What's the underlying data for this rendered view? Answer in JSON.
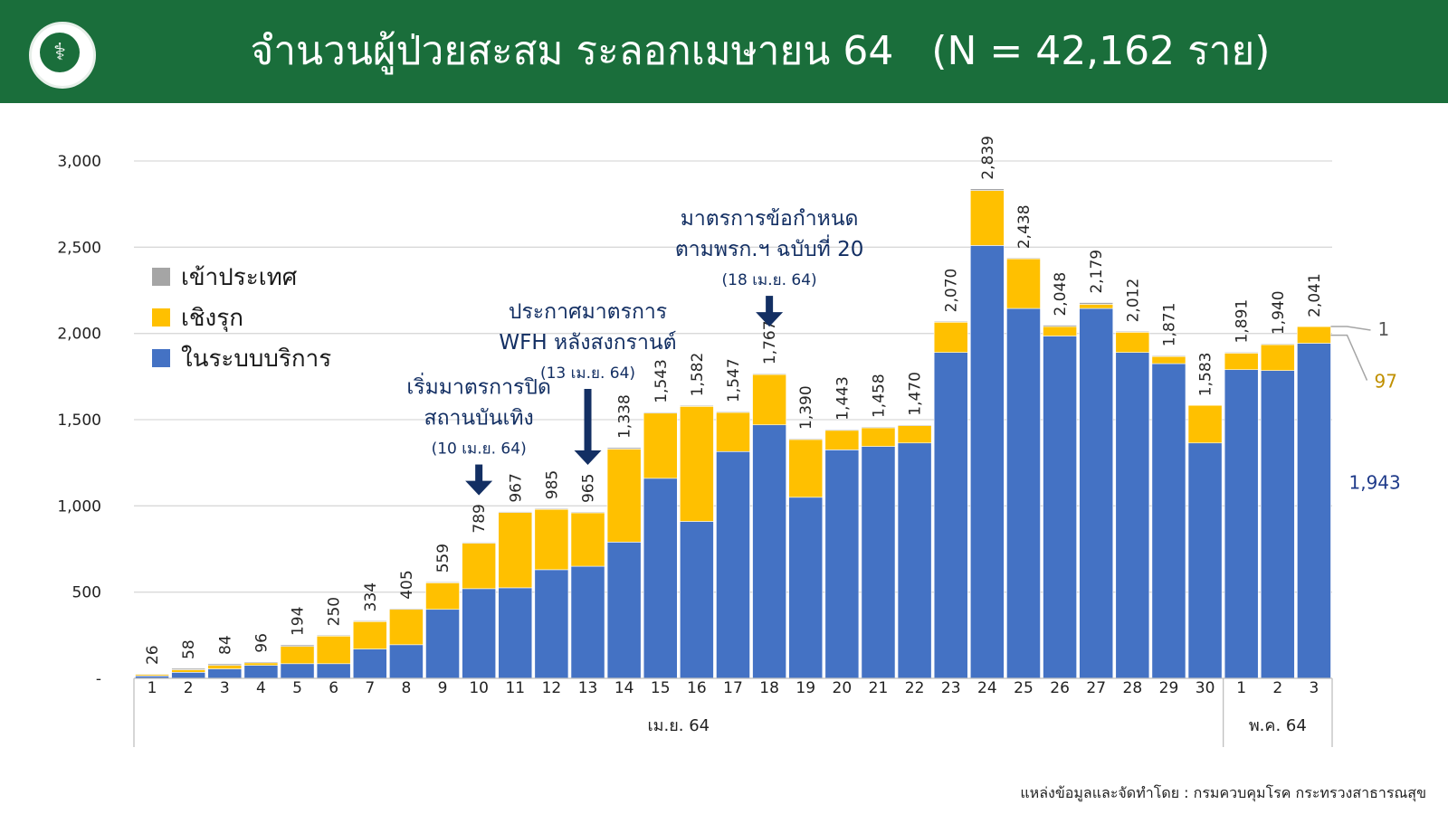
{
  "header": {
    "title": "จำนวนผู้ป่วยสะสม ระลอกเมษายน 64   (N = 42,162 ราย)",
    "logo_icon": "ministry-of-public-health-seal",
    "background_color": "#1a6e3b"
  },
  "footer": {
    "source_text": "แหล่งข้อมูลและจัดทำโดย : กรมควบคุมโรค กระทรวงสาธารณสุข"
  },
  "chart_data": {
    "type": "bar",
    "stacked": true,
    "categories": [
      "1",
      "2",
      "3",
      "4",
      "5",
      "6",
      "7",
      "8",
      "9",
      "10",
      "11",
      "12",
      "13",
      "14",
      "15",
      "16",
      "17",
      "18",
      "19",
      "20",
      "21",
      "22",
      "23",
      "24",
      "25",
      "26",
      "27",
      "28",
      "29",
      "30",
      "1",
      "2",
      "3"
    ],
    "totals": [
      26,
      58,
      84,
      96,
      194,
      250,
      334,
      405,
      559,
      789,
      967,
      985,
      965,
      1338,
      1543,
      1582,
      1547,
      1767,
      1390,
      1443,
      1458,
      1470,
      2070,
      2839,
      2438,
      2048,
      2179,
      2012,
      1871,
      1583,
      1891,
      1940,
      2041
    ],
    "total_labels": [
      "26",
      "58",
      "84",
      "96",
      "194",
      "250",
      "334",
      "405",
      "559",
      "789",
      "967",
      "985",
      "965",
      "1,338",
      "1,543",
      "1,582",
      "1,547",
      "1,767",
      "1,390",
      "1,443",
      "1,458",
      "1,470",
      "2,070",
      "2,839",
      "2,438",
      "2,048",
      "2,179",
      "2,012",
      "1,871",
      "1,583",
      "1,891",
      "1,940",
      "2,041"
    ],
    "series": [
      {
        "name": "ในระบบบริการ",
        "color": "#4472c4",
        "values": [
          14,
          35,
          55,
          75,
          85,
          85,
          170,
          195,
          400,
          520,
          525,
          630,
          650,
          790,
          1160,
          910,
          1315,
          1470,
          1050,
          1325,
          1345,
          1365,
          1890,
          2510,
          2145,
          1985,
          2145,
          1890,
          1825,
          1365,
          1790,
          1785,
          1943
        ]
      },
      {
        "name": "เชิงรุก",
        "color": "#ffc000",
        "values": [
          8,
          15,
          20,
          15,
          100,
          160,
          159,
          205,
          154,
          264,
          437,
          350,
          310,
          540,
          378,
          667,
          227,
          292,
          335,
          113,
          108,
          100,
          175,
          319,
          288,
          55,
          24,
          117,
          41,
          218,
          96,
          150,
          97
        ]
      },
      {
        "name": "เข้าประเทศ",
        "color": "#a5a5a5",
        "values": [
          4,
          8,
          9,
          6,
          9,
          5,
          5,
          5,
          5,
          5,
          5,
          5,
          5,
          8,
          5,
          5,
          5,
          5,
          5,
          5,
          5,
          5,
          5,
          10,
          5,
          8,
          10,
          5,
          5,
          0,
          5,
          5,
          1
        ]
      }
    ],
    "ylim": [
      0,
      3000
    ],
    "yticks": [
      0,
      500,
      1000,
      1500,
      2000,
      2500,
      3000
    ],
    "ytick_labels": [
      "-",
      "500",
      "1,000",
      "1,500",
      "2,000",
      "2,500",
      "3,000"
    ],
    "grid": true,
    "legend_position": "top-left",
    "month_groups": [
      {
        "label": "เม.ย. 64",
        "count": 30
      },
      {
        "label": "พ.ค. 64",
        "count": 3
      }
    ],
    "last_bar_callouts": {
      "imported": "1",
      "active": "97",
      "service": "1,943"
    },
    "annotations": [
      {
        "lines": [
          "เริ่มมาตรการปิด",
          "สถานบันเทิง"
        ],
        "date": "(10 เม.ย. 64)",
        "category_index": 9
      },
      {
        "lines": [
          "ประกาศมาตรการ",
          "WFH หลังสงกรานต์"
        ],
        "date": "(13 เม.ย. 64)",
        "category_index": 12
      },
      {
        "lines": [
          "มาตรการข้อกำหนด",
          "ตามพรก.ฯ ฉบับที่ 20"
        ],
        "date": "(18 เม.ย. 64)",
        "category_index": 17
      }
    ],
    "annotation_color": "#132f63"
  }
}
